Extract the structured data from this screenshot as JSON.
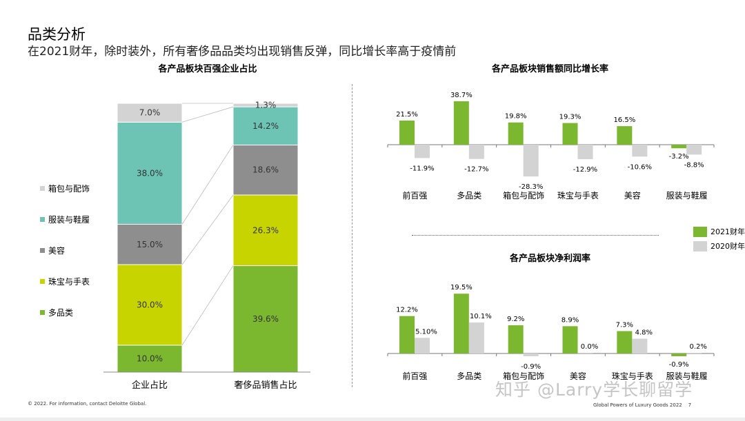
{
  "header": {
    "title": "品类分析",
    "subtitle": "在2021财年，除时装外，所有奢侈品品类均出现销售反弹，同比增长率高于疫情前"
  },
  "footer": {
    "left": "© 2022. For information, contact Deloitte Global.",
    "right": "Global Powers of Luxury Goods 2022",
    "page": "7",
    "watermark": "知乎 @Larry学长聊留学"
  },
  "colors": {
    "multi": "#7cb82f",
    "jewelry": "#c8d400",
    "beauty": "#8e8e8e",
    "apparel": "#6dc3b4",
    "bags": "#d3d3d3",
    "fy2021": "#7cb82f",
    "fy2020": "#d3d3d3"
  },
  "chart_data": [
    {
      "type": "bar",
      "stacked": true,
      "title": "各产品板块百强企业占比",
      "categories": [
        "企业占比",
        "奢侈品销售占比"
      ],
      "series": [
        {
          "name": "多品类",
          "values": [
            10.0,
            39.6
          ]
        },
        {
          "name": "珠宝与手表",
          "values": [
            30.0,
            26.3
          ]
        },
        {
          "name": "美容",
          "values": [
            15.0,
            18.6
          ]
        },
        {
          "name": "服装与鞋履",
          "values": [
            38.0,
            14.2
          ]
        },
        {
          "name": "箱包与配饰",
          "values": [
            7.0,
            1.3
          ]
        }
      ],
      "data_labels": [
        [
          "10.0%",
          "30.0%",
          "15.0%",
          "38.0%",
          "7.0%"
        ],
        [
          "39.6%",
          "26.3%",
          "18.6%",
          "14.2%",
          "1.3%"
        ]
      ],
      "legend": [
        "箱包与配饰",
        "服装与鞋履",
        "美容",
        "珠宝与手表",
        "多品类"
      ],
      "legend_placement": "left",
      "ylim": [
        0,
        100
      ]
    },
    {
      "type": "bar",
      "title": "各产品板块销售额同比增长率",
      "categories": [
        "前百强",
        "多品类",
        "箱包与配饰",
        "珠宝与手表",
        "美容",
        "服装与鞋履"
      ],
      "series": [
        {
          "name": "2021财年",
          "values": [
            21.5,
            38.7,
            19.8,
            19.3,
            16.5,
            -3.2
          ]
        },
        {
          "name": "2020财年",
          "values": [
            -11.9,
            -12.7,
            -28.3,
            -12.9,
            -10.6,
            -8.8
          ]
        }
      ],
      "legend_placement": "right"
    },
    {
      "type": "bar",
      "title": "各产品板块净利润率",
      "categories": [
        "前百强",
        "多品类",
        "箱包与配饰",
        "美容",
        "珠宝与手表",
        "服装与鞋履"
      ],
      "series": [
        {
          "name": "2021财年",
          "values": [
            12.2,
            19.5,
            9.2,
            8.9,
            7.3,
            -0.9
          ]
        },
        {
          "name": "2020财年",
          "values": [
            5.1,
            10.1,
            -0.9,
            0.0,
            4.8,
            0.2
          ]
        }
      ],
      "data_labels": [
        [
          "12.2%",
          "19.5%",
          "9.2%",
          "8.9%",
          "7.3%",
          "-0.9%"
        ],
        [
          "5.10%",
          "10.1%",
          "-0.9%",
          "0.0%",
          "4.8%",
          "0.2%"
        ]
      ]
    }
  ]
}
